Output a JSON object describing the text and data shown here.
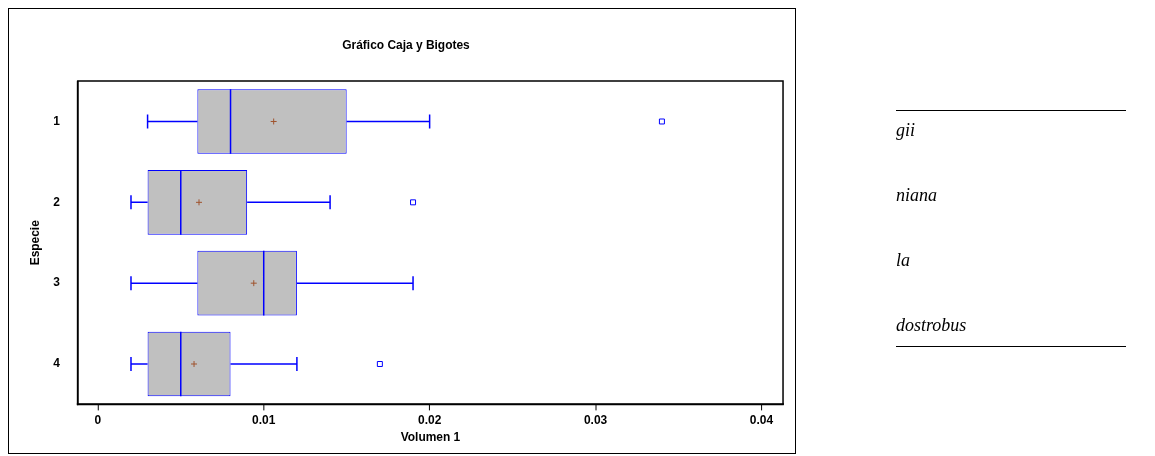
{
  "chart_data": {
    "type": "box",
    "orientation": "horizontal",
    "title": "Gráfico Caja y Bigotes",
    "xlabel": "Volumen 1",
    "ylabel": "Especie",
    "categories": [
      "1",
      "2",
      "3",
      "4"
    ],
    "color": "#0000ff",
    "boxes": [
      {
        "low": 0.003,
        "q1": 0.006,
        "median": 0.008,
        "q3": 0.015,
        "high": 0.02,
        "mean": 0.0106,
        "outliers": [
          0.034
        ]
      },
      {
        "low": 0.002,
        "q1": 0.003,
        "median": 0.005,
        "q3": 0.009,
        "high": 0.014,
        "mean": 0.0061,
        "outliers": [
          0.019
        ]
      },
      {
        "low": 0.002,
        "q1": 0.006,
        "median": 0.01,
        "q3": 0.012,
        "high": 0.019,
        "mean": 0.0094
      },
      {
        "low": 0.002,
        "q1": 0.003,
        "median": 0.005,
        "q3": 0.008,
        "high": 0.012,
        "mean": 0.0058,
        "outliers": [
          0.017
        ]
      }
    ],
    "xlim": [
      -0.0012,
      0.0413
    ],
    "xticks": [
      0,
      0.01,
      0.02,
      0.03,
      0.04
    ],
    "grid": false,
    "legend": false,
    "annotations": [
      "gii",
      "niana",
      "la",
      "dostrobus"
    ]
  }
}
